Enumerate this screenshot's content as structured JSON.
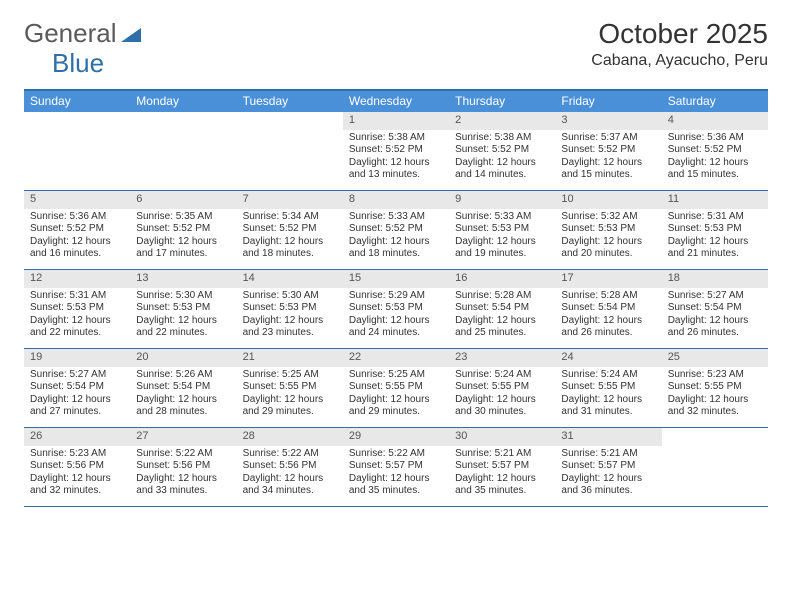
{
  "brand": {
    "name1": "General",
    "name2": "Blue"
  },
  "title": "October 2025",
  "location": "Cabana, Ayacucho, Peru",
  "colors": {
    "header_bar": "#4a90d9",
    "border": "#2f6fa8",
    "daynum_bg": "#e8e8e8",
    "text": "#333333",
    "bg": "#ffffff"
  },
  "dow": [
    "Sunday",
    "Monday",
    "Tuesday",
    "Wednesday",
    "Thursday",
    "Friday",
    "Saturday"
  ],
  "weeks": [
    [
      {
        "n": "",
        "empty": true
      },
      {
        "n": "",
        "empty": true
      },
      {
        "n": "",
        "empty": true
      },
      {
        "n": "1",
        "sunrise": "5:38 AM",
        "sunset": "5:52 PM",
        "daylight": "12 hours and 13 minutes."
      },
      {
        "n": "2",
        "sunrise": "5:38 AM",
        "sunset": "5:52 PM",
        "daylight": "12 hours and 14 minutes."
      },
      {
        "n": "3",
        "sunrise": "5:37 AM",
        "sunset": "5:52 PM",
        "daylight": "12 hours and 15 minutes."
      },
      {
        "n": "4",
        "sunrise": "5:36 AM",
        "sunset": "5:52 PM",
        "daylight": "12 hours and 15 minutes."
      }
    ],
    [
      {
        "n": "5",
        "sunrise": "5:36 AM",
        "sunset": "5:52 PM",
        "daylight": "12 hours and 16 minutes."
      },
      {
        "n": "6",
        "sunrise": "5:35 AM",
        "sunset": "5:52 PM",
        "daylight": "12 hours and 17 minutes."
      },
      {
        "n": "7",
        "sunrise": "5:34 AM",
        "sunset": "5:52 PM",
        "daylight": "12 hours and 18 minutes."
      },
      {
        "n": "8",
        "sunrise": "5:33 AM",
        "sunset": "5:52 PM",
        "daylight": "12 hours and 18 minutes."
      },
      {
        "n": "9",
        "sunrise": "5:33 AM",
        "sunset": "5:53 PM",
        "daylight": "12 hours and 19 minutes."
      },
      {
        "n": "10",
        "sunrise": "5:32 AM",
        "sunset": "5:53 PM",
        "daylight": "12 hours and 20 minutes."
      },
      {
        "n": "11",
        "sunrise": "5:31 AM",
        "sunset": "5:53 PM",
        "daylight": "12 hours and 21 minutes."
      }
    ],
    [
      {
        "n": "12",
        "sunrise": "5:31 AM",
        "sunset": "5:53 PM",
        "daylight": "12 hours and 22 minutes."
      },
      {
        "n": "13",
        "sunrise": "5:30 AM",
        "sunset": "5:53 PM",
        "daylight": "12 hours and 22 minutes."
      },
      {
        "n": "14",
        "sunrise": "5:30 AM",
        "sunset": "5:53 PM",
        "daylight": "12 hours and 23 minutes."
      },
      {
        "n": "15",
        "sunrise": "5:29 AM",
        "sunset": "5:53 PM",
        "daylight": "12 hours and 24 minutes."
      },
      {
        "n": "16",
        "sunrise": "5:28 AM",
        "sunset": "5:54 PM",
        "daylight": "12 hours and 25 minutes."
      },
      {
        "n": "17",
        "sunrise": "5:28 AM",
        "sunset": "5:54 PM",
        "daylight": "12 hours and 26 minutes."
      },
      {
        "n": "18",
        "sunrise": "5:27 AM",
        "sunset": "5:54 PM",
        "daylight": "12 hours and 26 minutes."
      }
    ],
    [
      {
        "n": "19",
        "sunrise": "5:27 AM",
        "sunset": "5:54 PM",
        "daylight": "12 hours and 27 minutes."
      },
      {
        "n": "20",
        "sunrise": "5:26 AM",
        "sunset": "5:54 PM",
        "daylight": "12 hours and 28 minutes."
      },
      {
        "n": "21",
        "sunrise": "5:25 AM",
        "sunset": "5:55 PM",
        "daylight": "12 hours and 29 minutes."
      },
      {
        "n": "22",
        "sunrise": "5:25 AM",
        "sunset": "5:55 PM",
        "daylight": "12 hours and 29 minutes."
      },
      {
        "n": "23",
        "sunrise": "5:24 AM",
        "sunset": "5:55 PM",
        "daylight": "12 hours and 30 minutes."
      },
      {
        "n": "24",
        "sunrise": "5:24 AM",
        "sunset": "5:55 PM",
        "daylight": "12 hours and 31 minutes."
      },
      {
        "n": "25",
        "sunrise": "5:23 AM",
        "sunset": "5:55 PM",
        "daylight": "12 hours and 32 minutes."
      }
    ],
    [
      {
        "n": "26",
        "sunrise": "5:23 AM",
        "sunset": "5:56 PM",
        "daylight": "12 hours and 32 minutes."
      },
      {
        "n": "27",
        "sunrise": "5:22 AM",
        "sunset": "5:56 PM",
        "daylight": "12 hours and 33 minutes."
      },
      {
        "n": "28",
        "sunrise": "5:22 AM",
        "sunset": "5:56 PM",
        "daylight": "12 hours and 34 minutes."
      },
      {
        "n": "29",
        "sunrise": "5:22 AM",
        "sunset": "5:57 PM",
        "daylight": "12 hours and 35 minutes."
      },
      {
        "n": "30",
        "sunrise": "5:21 AM",
        "sunset": "5:57 PM",
        "daylight": "12 hours and 35 minutes."
      },
      {
        "n": "31",
        "sunrise": "5:21 AM",
        "sunset": "5:57 PM",
        "daylight": "12 hours and 36 minutes."
      },
      {
        "n": "",
        "empty": true
      }
    ]
  ],
  "labels": {
    "sunrise": "Sunrise:",
    "sunset": "Sunset:",
    "daylight": "Daylight:"
  }
}
